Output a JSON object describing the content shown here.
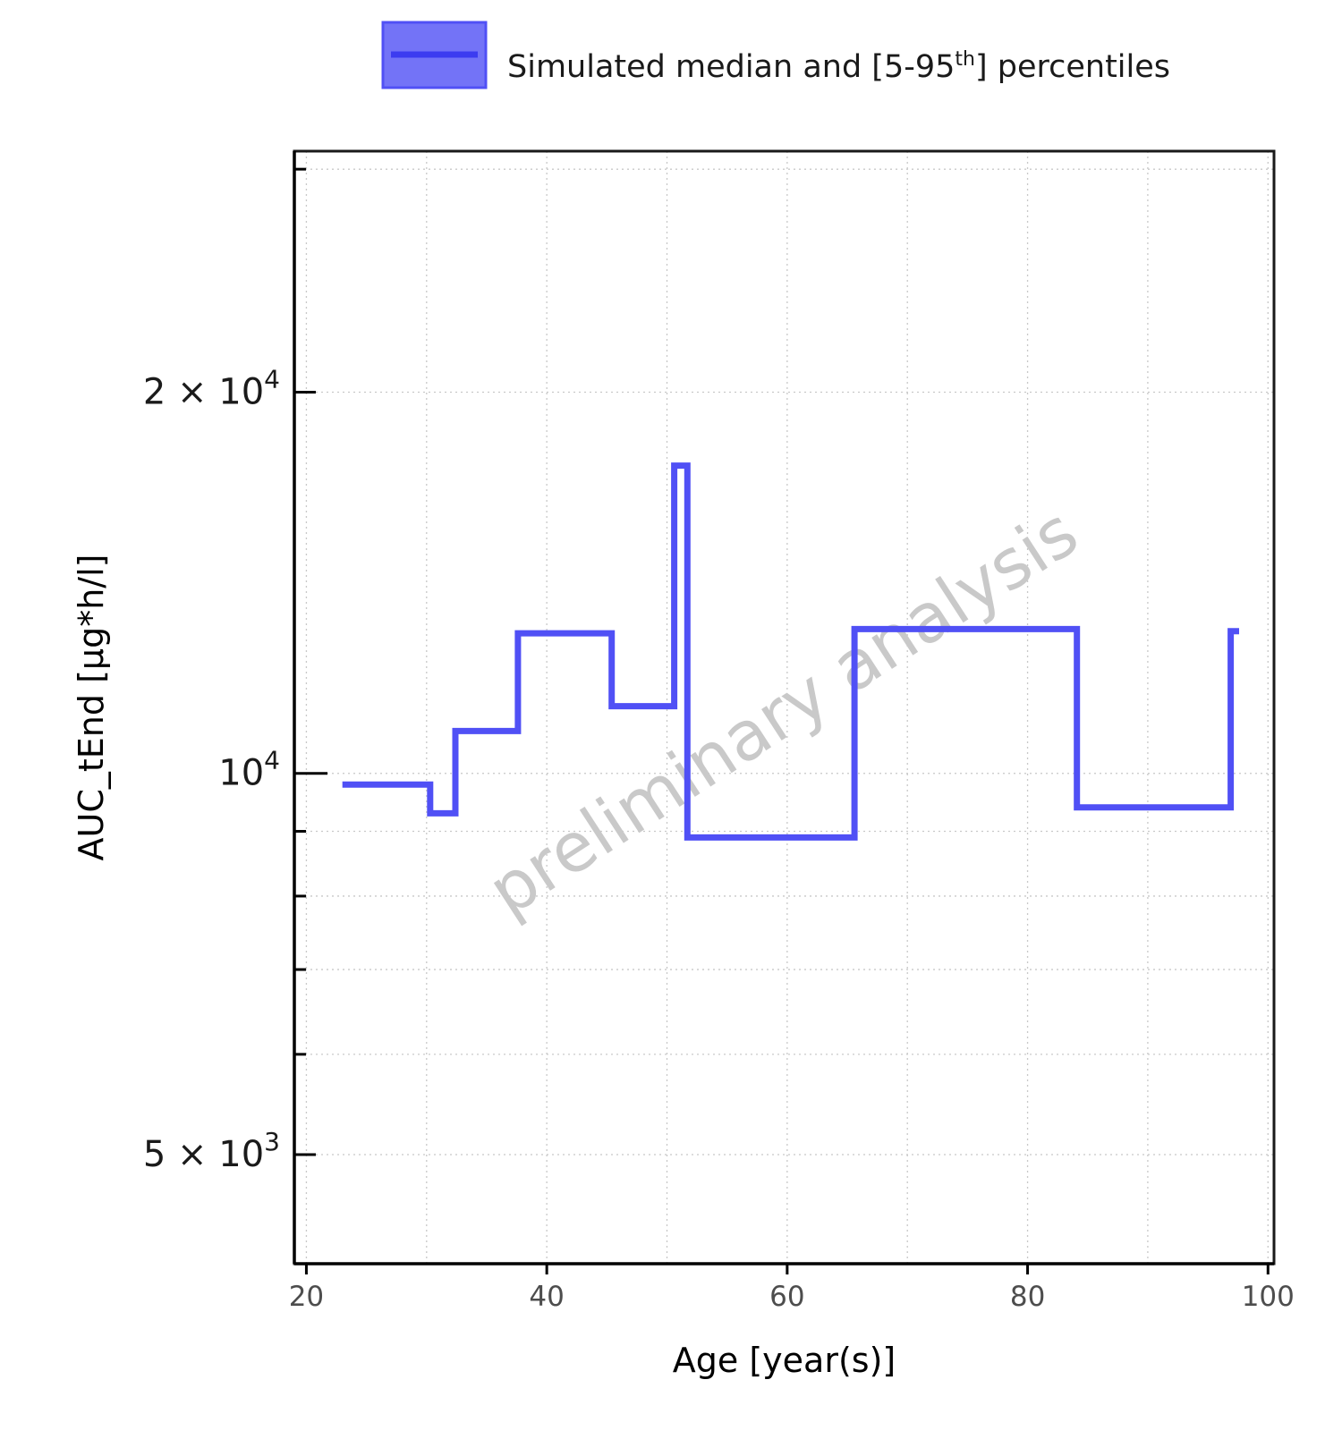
{
  "chart_data": {
    "type": "line",
    "title": "",
    "xlabel": "Age [year(s)]",
    "ylabel": "AUC_tEnd [µg*h/l]",
    "xlim": [
      19,
      100.5
    ],
    "ylim": [
      4100,
      31000
    ],
    "yscale": "log",
    "grid": true,
    "legend_position": "top",
    "watermark": "preliminary analysis",
    "legend": [
      {
        "name": "Simulated median and [5-95",
        "superscript": "th",
        "suffix": "] percentiles",
        "color": "#5050f5"
      }
    ],
    "x_ticks": [
      {
        "value": 20,
        "label": "20"
      },
      {
        "value": 40,
        "label": "40"
      },
      {
        "value": 60,
        "label": "60"
      },
      {
        "value": 80,
        "label": "80"
      },
      {
        "value": 100,
        "label": "100"
      }
    ],
    "y_major_ticks": [
      {
        "value": 5000,
        "base": "5 × 10",
        "exp": "3"
      },
      {
        "value": 10000,
        "base": "10",
        "exp": "4"
      },
      {
        "value": 20000,
        "base": "2 × 10",
        "exp": "4"
      }
    ],
    "y_minor_ticks": [
      4000,
      6000,
      7000,
      8000,
      9000,
      30000
    ],
    "series": [
      {
        "name": "Simulated median and [5-95th] percentiles",
        "color": "#5050f5",
        "step": true,
        "x": [
          23,
          30.3,
          32.4,
          37.6,
          45.4,
          50.6,
          51.7,
          65.6,
          84.1,
          96.9,
          97.6
        ],
        "y": [
          9800,
          9300,
          10800,
          12900,
          11300,
          17500,
          8900,
          13000,
          9400,
          12950,
          12950
        ]
      }
    ]
  }
}
